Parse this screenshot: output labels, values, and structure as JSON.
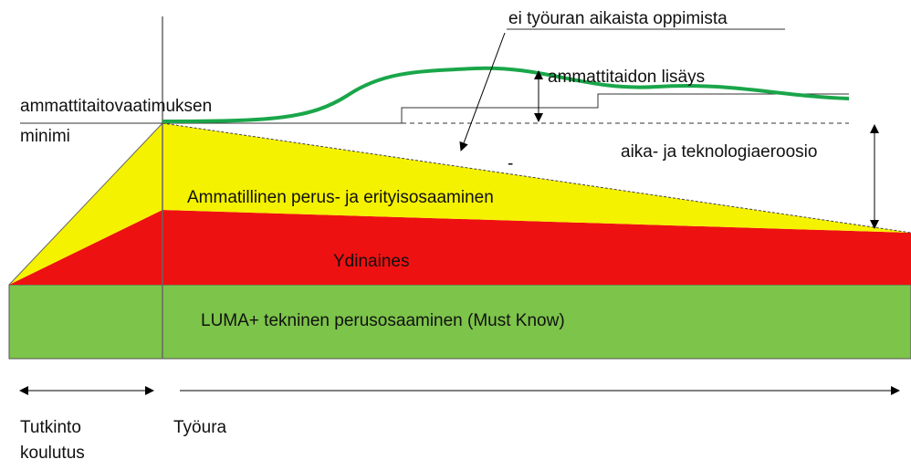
{
  "labels": {
    "no_learning": "ei työuran aikaista oppimista",
    "skill_increase": "ammattitaidon lisäys",
    "requirement_line1": "ammattitaitovaatimuksen",
    "requirement_line2": "minimi",
    "erosion": "aika- ja teknologiaeroosio",
    "minus": "-",
    "vocational": "Ammatillinen perus- ja erityisosaaminen",
    "core": "Ydinaines",
    "luma": "LUMA+ tekninen perusosaaminen (Must Know)",
    "degree_line1": "Tutkinto",
    "degree_line2": "koulutus",
    "career": "Työura"
  }
}
